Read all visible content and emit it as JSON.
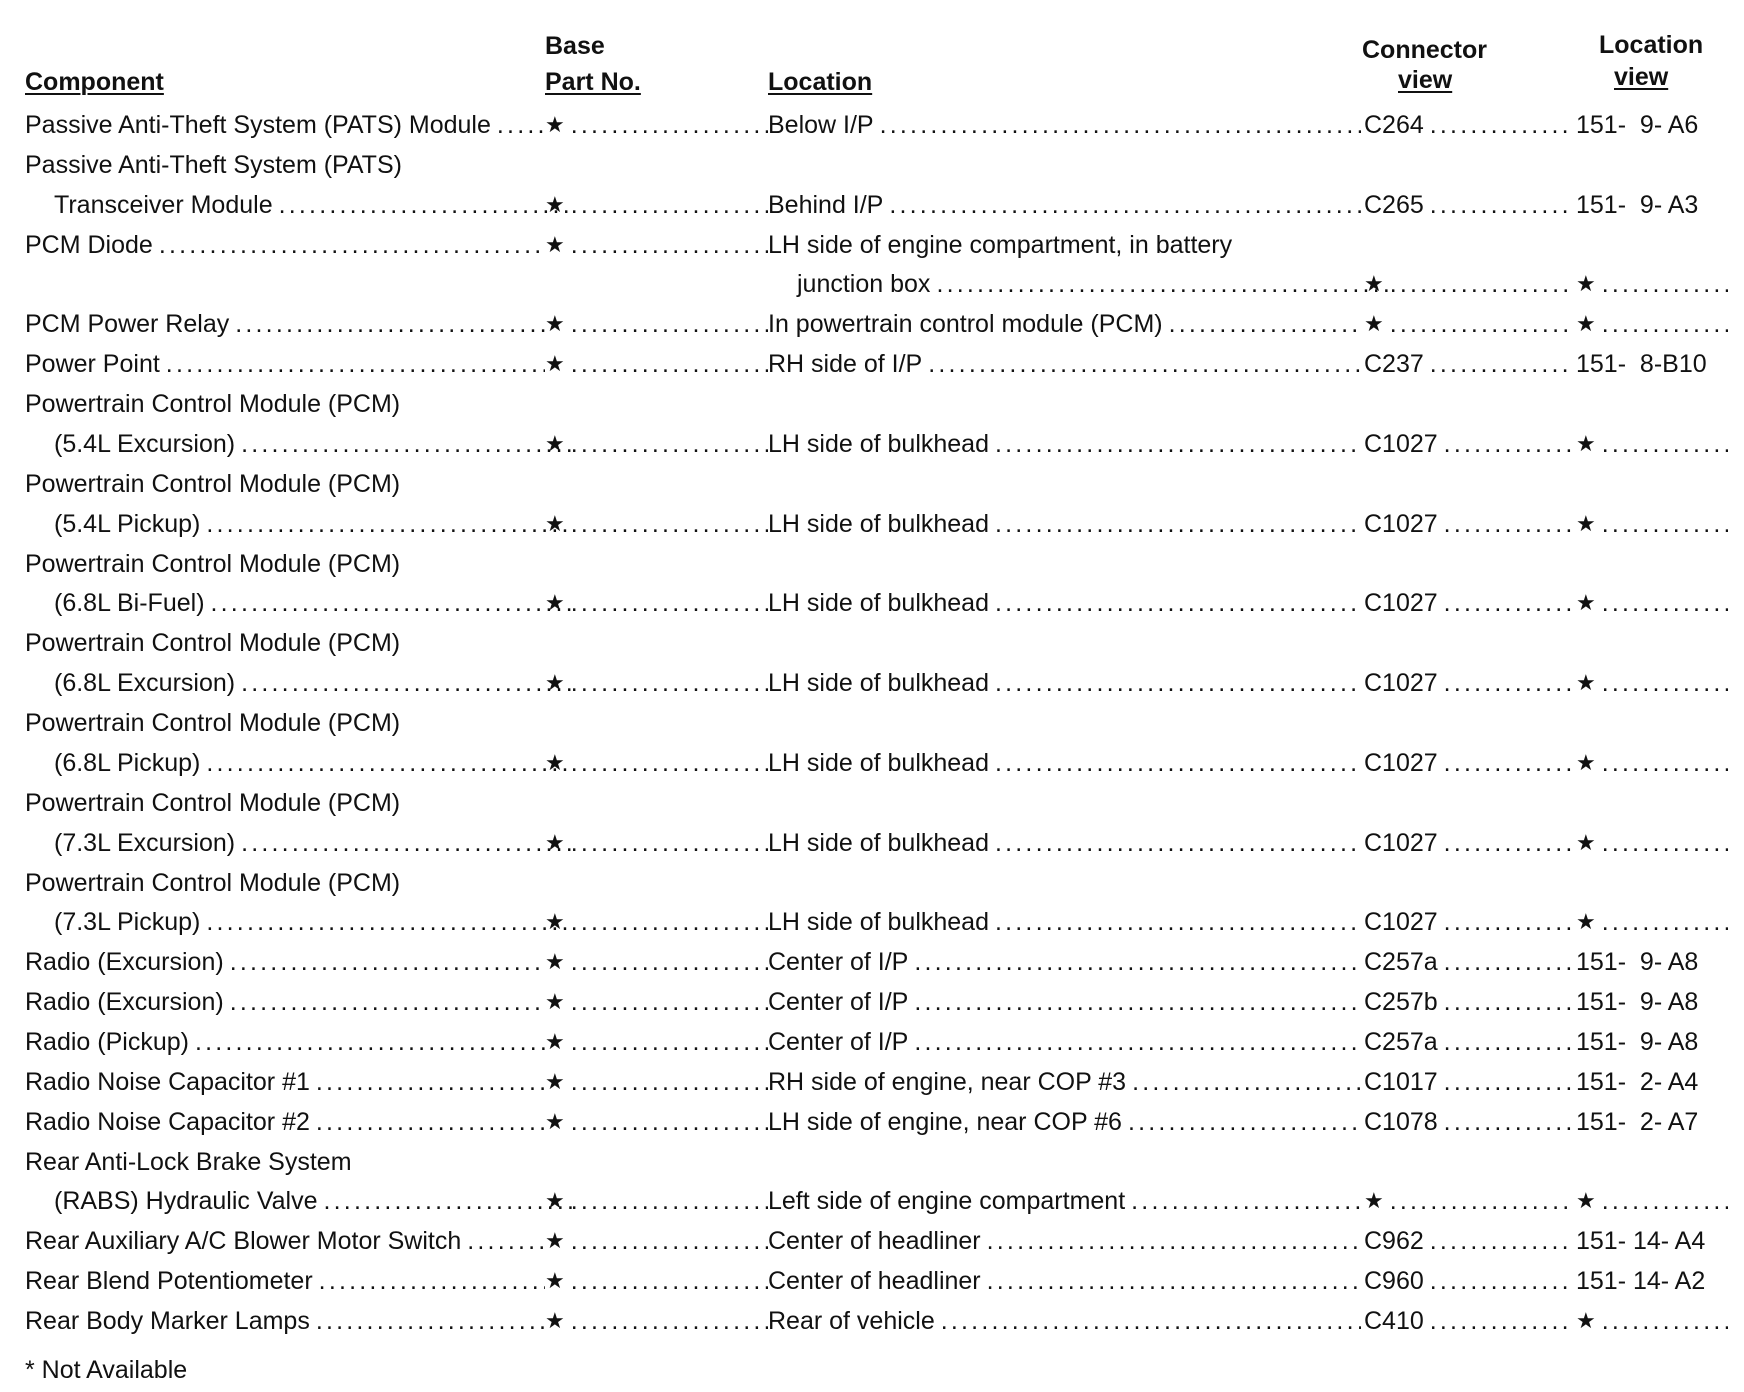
{
  "headers": {
    "component": "Component",
    "part_top": "Base",
    "part_bottom": "Part No.",
    "location": "Location",
    "connector_top": "Connector",
    "connector_bottom": "view",
    "locview_top": "Location",
    "locview_bottom": "view"
  },
  "lines": [
    {
      "comp": "Passive Anti-Theft System (PATS) Module",
      "part": "★",
      "loc": "Below I/P",
      "conn": "C264",
      "view": "151-  9- A6"
    },
    {
      "comp": "Passive Anti-Theft System (PATS)"
    },
    {
      "comp": "Transceiver Module",
      "comp_indent": true,
      "part": "★",
      "loc": "Behind I/P",
      "conn": "C265",
      "view": "151-  9- A3"
    },
    {
      "comp": "PCM Diode",
      "part": "★",
      "loc": "LH side of engine compartment, in battery"
    },
    {
      "loc": "junction box",
      "loc_indent": true,
      "conn": "★",
      "view": "★"
    },
    {
      "comp": "PCM Power Relay",
      "part": "★",
      "loc": "In powertrain control module (PCM)",
      "conn": "★",
      "view": "★"
    },
    {
      "comp": "Power Point",
      "part": "★",
      "loc": "RH side of I/P",
      "conn": "C237",
      "view": "151-  8-B10"
    },
    {
      "comp": "Powertrain Control Module (PCM)"
    },
    {
      "comp": "(5.4L Excursion)",
      "comp_indent": true,
      "part": "★",
      "loc": "LH side of bulkhead",
      "conn": "C1027",
      "view": "★"
    },
    {
      "comp": "Powertrain Control Module (PCM)"
    },
    {
      "comp": "(5.4L Pickup)",
      "comp_indent": true,
      "part": "★",
      "loc": "LH side of bulkhead",
      "conn": "C1027",
      "view": "★"
    },
    {
      "comp": "Powertrain Control Module (PCM)"
    },
    {
      "comp": "(6.8L Bi-Fuel)",
      "comp_indent": true,
      "part": "★",
      "loc": "LH side of bulkhead",
      "conn": "C1027",
      "view": "★"
    },
    {
      "comp": "Powertrain Control Module (PCM)"
    },
    {
      "comp": "(6.8L Excursion)",
      "comp_indent": true,
      "part": "★",
      "loc": "LH side of bulkhead",
      "conn": "C1027",
      "view": "★"
    },
    {
      "comp": "Powertrain Control Module (PCM)"
    },
    {
      "comp": "(6.8L Pickup)",
      "comp_indent": true,
      "part": "★",
      "loc": "LH side of bulkhead",
      "conn": "C1027",
      "view": "★"
    },
    {
      "comp": "Powertrain Control Module (PCM)"
    },
    {
      "comp": "(7.3L Excursion)",
      "comp_indent": true,
      "part": "★",
      "loc": "LH side of bulkhead",
      "conn": "C1027",
      "view": "★"
    },
    {
      "comp": "Powertrain Control Module (PCM)"
    },
    {
      "comp": "(7.3L Pickup)",
      "comp_indent": true,
      "part": "★",
      "loc": "LH side of bulkhead",
      "conn": "C1027",
      "view": "★"
    },
    {
      "comp": "Radio (Excursion)",
      "part": "★",
      "loc": "Center of I/P",
      "conn": "C257a",
      "view": "151-  9- A8"
    },
    {
      "comp": "Radio (Excursion)",
      "part": "★",
      "loc": "Center of I/P",
      "conn": "C257b",
      "view": "151-  9- A8"
    },
    {
      "comp": "Radio (Pickup)",
      "part": "★",
      "loc": "Center of I/P",
      "conn": "C257a",
      "view": "151-  9- A8"
    },
    {
      "comp": "Radio Noise Capacitor #1",
      "part": "★",
      "loc": "RH side of engine, near COP #3",
      "conn": "C1017",
      "view": "151-  2- A4"
    },
    {
      "comp": "Radio Noise Capacitor #2",
      "part": "★",
      "loc": "LH side of engine, near COP #6",
      "conn": "C1078",
      "view": "151-  2- A7"
    },
    {
      "comp": "Rear Anti-Lock Brake System"
    },
    {
      "comp": "(RABS) Hydraulic Valve",
      "comp_indent": true,
      "part": "★",
      "loc": "Left side of engine compartment",
      "conn": "★",
      "view": "★"
    },
    {
      "comp": "Rear Auxiliary A/C Blower Motor Switch",
      "part": "★",
      "loc": "Center of headliner",
      "conn": "C962",
      "view": "151- 14- A4"
    },
    {
      "comp": "Rear Blend Potentiometer",
      "part": "★",
      "loc": "Center of headliner",
      "conn": "C960",
      "view": "151- 14- A2"
    },
    {
      "comp": "Rear Body Marker Lamps",
      "part": "★",
      "loc": "Rear of vehicle",
      "conn": "C410",
      "view": "★"
    }
  ],
  "footer": "* Not Available"
}
